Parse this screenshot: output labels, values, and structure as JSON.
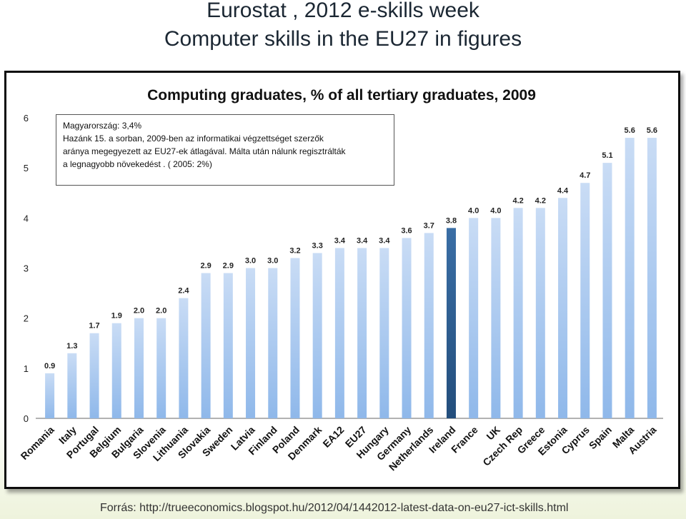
{
  "slide": {
    "title_line1": "Eurostat , 2012 e-skills week",
    "title_line2": "Computer skills in the EU27 in figures",
    "source": "Forrás: http://trueeconomics.blogspot.hu/2012/04/1442012-latest-data-on-eu27-ict-skills.html"
  },
  "annotation": {
    "lines": [
      "Magyarország: 3,4%",
      "Hazánk 15. a sorban, 2009-ben  az informatikai végzettséget szerzők",
      "aránya megegyezett az EU27-ek átlagával. Málta után nálunk regisztrálták",
      "a legnagyobb növekedést . ( 2005: 2%)"
    ]
  },
  "chart_data": {
    "type": "bar",
    "title": "Computing graduates, % of all tertiary graduates, 2009",
    "xlabel": "",
    "ylabel": "",
    "ylim": [
      0,
      6
    ],
    "yticks": [
      0,
      1,
      2,
      3,
      4,
      5,
      6
    ],
    "grid": false,
    "categories": [
      "Romania",
      "Italy",
      "Portugal",
      "Belgium",
      "Bulgaria",
      "Slovenia",
      "Lithuania",
      "Slovakia",
      "Sweden",
      "Latvia",
      "Finland",
      "Poland",
      "Denmark",
      "EA12",
      "EU27",
      "Hungary",
      "Germany",
      "Netherlands",
      "Ireland",
      "France",
      "UK",
      "Czech Rep",
      "Greece",
      "Estonia",
      "Cyprus",
      "Spain",
      "Malta",
      "Austria"
    ],
    "values": [
      0.9,
      1.3,
      1.7,
      1.9,
      2.0,
      2.0,
      2.4,
      2.9,
      2.9,
      3.0,
      3.0,
      3.2,
      3.3,
      3.4,
      3.4,
      3.4,
      3.6,
      3.7,
      3.8,
      4.0,
      4.0,
      4.2,
      4.2,
      4.4,
      4.7,
      5.1,
      5.6,
      5.6
    ],
    "value_labels": [
      "0.9",
      "1.3",
      "1.7",
      "1.9",
      "2.0",
      "2.0",
      "2.4",
      "2.9",
      "2.9",
      "3.0",
      "3.0",
      "3.2",
      "3.3",
      "3.4",
      "3.4",
      "3.4",
      "3.6",
      "3.7",
      "3.8",
      "4.0",
      "4.0",
      "4.2",
      "4.2",
      "4.4",
      "4.7",
      "5.1",
      "5.6",
      "5.6"
    ],
    "highlight": "Ireland",
    "colors": {
      "bar": "#8fb8ea",
      "bar_top": "#c9dcf5",
      "highlight": "#2d5f95",
      "axis": "#999999"
    }
  }
}
